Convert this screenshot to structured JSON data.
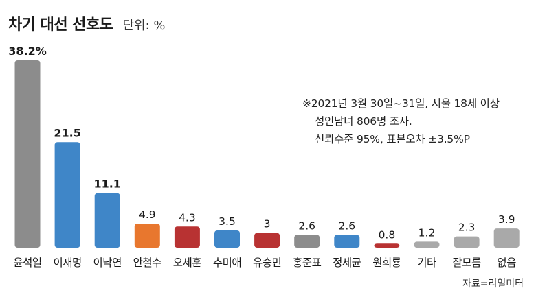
{
  "chart_data": {
    "type": "bar",
    "title": "차기 대선 선호도",
    "unit": "단위: %",
    "categories": [
      "윤석열",
      "이재명",
      "이낙연",
      "안철수",
      "오세훈",
      "추미애",
      "유승민",
      "홍준표",
      "정세균",
      "원희룡",
      "기타",
      "잘모름",
      "없음"
    ],
    "values": [
      38.2,
      21.5,
      11.1,
      4.9,
      4.3,
      3.5,
      3,
      2.6,
      2.6,
      0.8,
      1.2,
      2.3,
      3.9
    ],
    "value_labels": [
      "38.2%",
      "21.5",
      "11.1",
      "4.9",
      "4.3",
      "3.5",
      "3",
      "2.6",
      "2.6",
      "0.8",
      "1.2",
      "2.3",
      "3.9"
    ],
    "bar_colors": [
      "#8c8c8c",
      "#3f86c8",
      "#3f86c8",
      "#e8772e",
      "#b83232",
      "#3f86c8",
      "#b83232",
      "#8c8c8c",
      "#3f86c8",
      "#b83232",
      "#a9a9a9",
      "#a9a9a9",
      "#a9a9a9"
    ],
    "bold_labels": [
      true,
      true,
      true,
      false,
      false,
      false,
      false,
      false,
      false,
      false,
      false,
      false,
      false
    ],
    "ylim": [
      0,
      38.2
    ],
    "grid": false,
    "legend": "none"
  },
  "note": {
    "line1": "※2021년 3월 30일~31일, 서울 18세 이상",
    "line2": "성인남녀 806명 조사.",
    "line3": "신뢰수준 95%, 표본오차 ±3.5%P"
  },
  "source": "자료=리얼미터"
}
